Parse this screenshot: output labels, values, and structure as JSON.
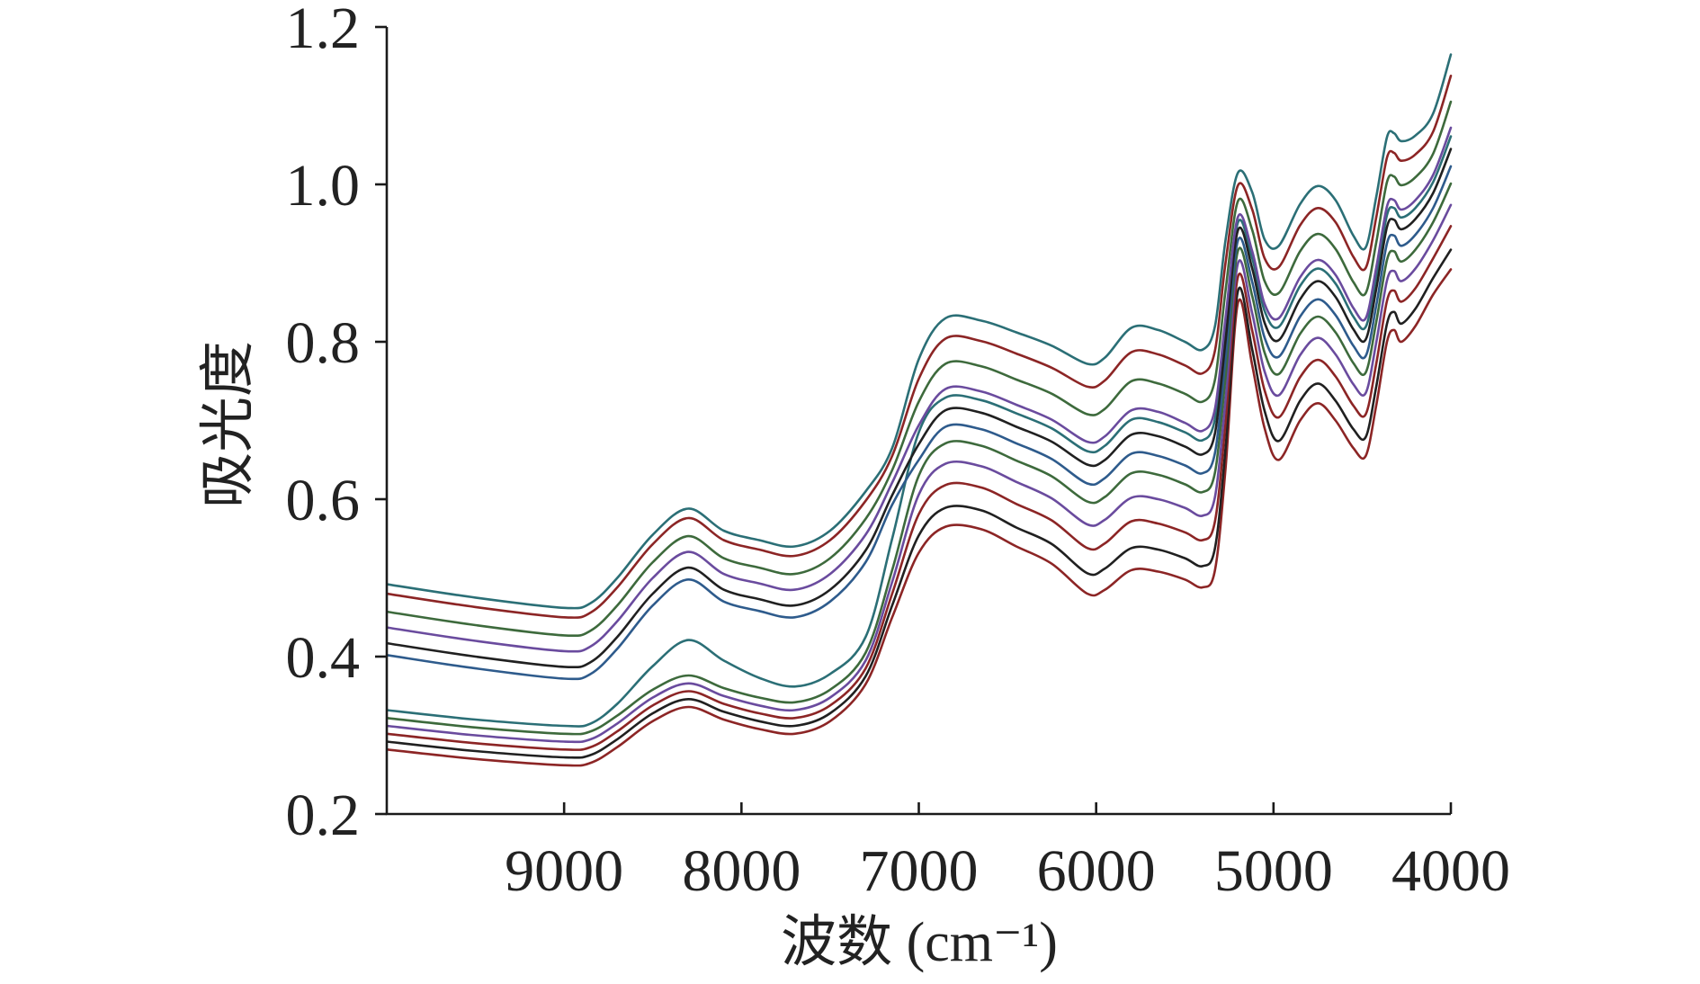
{
  "chart_data": {
    "type": "line",
    "xlabel": "波数 (cm⁻¹)",
    "ylabel": "吸光度",
    "xlim": [
      10000,
      4000
    ],
    "ylim": [
      0.2,
      1.2
    ],
    "x_reversed": true,
    "grid": false,
    "legend": false,
    "x_ticks": [
      "9000",
      "8000",
      "7000",
      "6000",
      "5000",
      "4000"
    ],
    "y_ticks": [
      "0.2",
      "0.4",
      "0.6",
      "0.8",
      "1.0",
      "1.2"
    ],
    "x": [
      10000,
      9500,
      9000,
      8850,
      8700,
      8500,
      8300,
      8100,
      7900,
      7700,
      7500,
      7300,
      7150,
      7000,
      6850,
      6650,
      6450,
      6250,
      6050,
      5950,
      5800,
      5650,
      5500,
      5400,
      5330,
      5270,
      5200,
      5120,
      5050,
      4970,
      4850,
      4750,
      4650,
      4550,
      4480,
      4420,
      4360,
      4320,
      4280,
      4200,
      4100,
      4000
    ],
    "series": [
      {
        "color": "#2b6f76",
        "values": [
          0.492,
          0.475,
          0.462,
          0.468,
          0.5,
          0.555,
          0.588,
          0.56,
          0.548,
          0.54,
          0.56,
          0.61,
          0.665,
          0.778,
          0.83,
          0.827,
          0.812,
          0.795,
          0.772,
          0.78,
          0.818,
          0.815,
          0.8,
          0.79,
          0.82,
          0.93,
          1.015,
          0.99,
          0.93,
          0.922,
          0.975,
          0.998,
          0.98,
          0.935,
          0.92,
          0.985,
          1.06,
          1.065,
          1.055,
          1.062,
          1.09,
          1.165
        ]
      },
      {
        "color": "#8c2525",
        "values": [
          0.48,
          0.463,
          0.45,
          0.456,
          0.488,
          0.543,
          0.576,
          0.548,
          0.536,
          0.528,
          0.548,
          0.598,
          0.655,
          0.753,
          0.804,
          0.801,
          0.785,
          0.767,
          0.743,
          0.751,
          0.787,
          0.784,
          0.77,
          0.76,
          0.789,
          0.901,
          0.999,
          0.968,
          0.906,
          0.895,
          0.948,
          0.97,
          0.952,
          0.908,
          0.894,
          0.959,
          1.034,
          1.04,
          1.03,
          1.038,
          1.067,
          1.138
        ]
      },
      {
        "color": "#3d6a3c",
        "values": [
          0.457,
          0.44,
          0.427,
          0.433,
          0.465,
          0.52,
          0.553,
          0.525,
          0.513,
          0.505,
          0.525,
          0.575,
          0.637,
          0.724,
          0.772,
          0.769,
          0.752,
          0.734,
          0.708,
          0.715,
          0.75,
          0.747,
          0.734,
          0.724,
          0.752,
          0.866,
          0.979,
          0.942,
          0.877,
          0.862,
          0.915,
          0.937,
          0.918,
          0.876,
          0.862,
          0.927,
          1.003,
          1.01,
          0.999,
          1.009,
          1.039,
          1.105
        ]
      },
      {
        "color": "#6a4b9e",
        "values": [
          0.437,
          0.42,
          0.407,
          0.413,
          0.445,
          0.5,
          0.533,
          0.505,
          0.493,
          0.485,
          0.505,
          0.555,
          0.621,
          0.694,
          0.74,
          0.737,
          0.72,
          0.701,
          0.673,
          0.68,
          0.713,
          0.711,
          0.697,
          0.687,
          0.715,
          0.831,
          0.959,
          0.915,
          0.848,
          0.83,
          0.882,
          0.904,
          0.885,
          0.843,
          0.83,
          0.895,
          0.972,
          0.98,
          0.968,
          0.98,
          1.012,
          1.072
        ]
      },
      {
        "color": "#202020",
        "values": [
          0.417,
          0.4,
          0.387,
          0.393,
          0.425,
          0.48,
          0.513,
          0.485,
          0.473,
          0.465,
          0.485,
          0.535,
          0.605,
          0.67,
          0.713,
          0.71,
          0.692,
          0.673,
          0.644,
          0.65,
          0.682,
          0.68,
          0.667,
          0.657,
          0.684,
          0.802,
          0.942,
          0.893,
          0.824,
          0.802,
          0.854,
          0.877,
          0.857,
          0.816,
          0.803,
          0.868,
          0.946,
          0.955,
          0.943,
          0.956,
          0.989,
          1.045
        ]
      },
      {
        "color": "#2e5b8c",
        "values": [
          0.402,
          0.385,
          0.372,
          0.378,
          0.41,
          0.465,
          0.498,
          0.47,
          0.458,
          0.45,
          0.47,
          0.52,
          0.593,
          0.65,
          0.692,
          0.689,
          0.671,
          0.651,
          0.62,
          0.627,
          0.658,
          0.655,
          0.643,
          0.633,
          0.659,
          0.779,
          0.929,
          0.876,
          0.805,
          0.781,
          0.832,
          0.854,
          0.834,
          0.795,
          0.782,
          0.847,
          0.925,
          0.935,
          0.922,
          0.936,
          0.97,
          1.023
        ]
      },
      {
        "color": "#2b6f76",
        "values": [
          0.332,
          0.32,
          0.312,
          0.315,
          0.34,
          0.388,
          0.421,
          0.395,
          0.373,
          0.362,
          0.378,
          0.425,
          0.55,
          0.685,
          0.729,
          0.726,
          0.709,
          0.69,
          0.661,
          0.668,
          0.701,
          0.698,
          0.685,
          0.675,
          0.702,
          0.82,
          0.952,
          0.906,
          0.839,
          0.819,
          0.871,
          0.893,
          0.874,
          0.832,
          0.819,
          0.884,
          0.961,
          0.97,
          0.958,
          0.97,
          1.003,
          1.061
        ]
      },
      {
        "color": "#3d6a3c",
        "values": [
          0.322,
          0.31,
          0.302,
          0.305,
          0.325,
          0.358,
          0.376,
          0.36,
          0.348,
          0.342,
          0.358,
          0.405,
          0.51,
          0.63,
          0.671,
          0.668,
          0.649,
          0.629,
          0.597,
          0.603,
          0.633,
          0.631,
          0.619,
          0.609,
          0.634,
          0.756,
          0.916,
          0.858,
          0.786,
          0.759,
          0.81,
          0.832,
          0.812,
          0.773,
          0.761,
          0.826,
          0.904,
          0.915,
          0.902,
          0.917,
          0.952,
          1.001
        ]
      },
      {
        "color": "#6a4b9e",
        "values": [
          0.312,
          0.3,
          0.292,
          0.295,
          0.315,
          0.348,
          0.366,
          0.35,
          0.338,
          0.332,
          0.348,
          0.395,
          0.495,
          0.606,
          0.645,
          0.642,
          0.622,
          0.601,
          0.568,
          0.574,
          0.602,
          0.6,
          0.589,
          0.579,
          0.603,
          0.727,
          0.9,
          0.836,
          0.762,
          0.732,
          0.783,
          0.805,
          0.784,
          0.746,
          0.735,
          0.8,
          0.878,
          0.89,
          0.877,
          0.893,
          0.929,
          0.974
        ]
      },
      {
        "color": "#8c2525",
        "values": [
          0.302,
          0.29,
          0.282,
          0.285,
          0.305,
          0.338,
          0.356,
          0.34,
          0.328,
          0.322,
          0.338,
          0.385,
          0.48,
          0.581,
          0.618,
          0.615,
          0.594,
          0.573,
          0.538,
          0.544,
          0.572,
          0.569,
          0.558,
          0.548,
          0.572,
          0.698,
          0.883,
          0.814,
          0.738,
          0.704,
          0.755,
          0.777,
          0.756,
          0.719,
          0.708,
          0.773,
          0.852,
          0.865,
          0.851,
          0.868,
          0.906,
          0.947
        ]
      },
      {
        "color": "#202020",
        "values": [
          0.292,
          0.28,
          0.272,
          0.275,
          0.295,
          0.328,
          0.346,
          0.33,
          0.318,
          0.312,
          0.328,
          0.375,
          0.465,
          0.554,
          0.589,
          0.586,
          0.564,
          0.543,
          0.506,
          0.512,
          0.538,
          0.536,
          0.525,
          0.515,
          0.538,
          0.666,
          0.865,
          0.79,
          0.712,
          0.674,
          0.725,
          0.747,
          0.725,
          0.689,
          0.679,
          0.744,
          0.823,
          0.838,
          0.823,
          0.842,
          0.881,
          0.917
        ]
      },
      {
        "color": "#8c2525",
        "values": [
          0.282,
          0.27,
          0.262,
          0.265,
          0.285,
          0.318,
          0.336,
          0.32,
          0.308,
          0.302,
          0.318,
          0.365,
          0.45,
          0.532,
          0.565,
          0.562,
          0.54,
          0.518,
          0.48,
          0.485,
          0.51,
          0.508,
          0.498,
          0.488,
          0.51,
          0.64,
          0.85,
          0.77,
          0.69,
          0.65,
          0.7,
          0.722,
          0.7,
          0.665,
          0.655,
          0.72,
          0.8,
          0.815,
          0.8,
          0.82,
          0.86,
          0.892
        ]
      }
    ]
  }
}
